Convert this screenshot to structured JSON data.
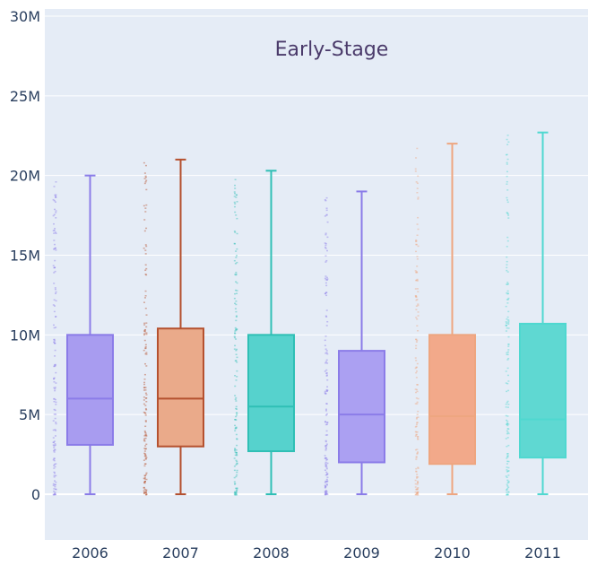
{
  "chart_data": {
    "type": "box",
    "title": "Early-Stage",
    "xlabel": "",
    "ylabel": "",
    "categories": [
      "2006",
      "2007",
      "2008",
      "2009",
      "2010",
      "2011"
    ],
    "y_ticks": [
      {
        "value": 0,
        "label": "0"
      },
      {
        "value": 5,
        "label": "5M"
      },
      {
        "value": 10,
        "label": "10M"
      },
      {
        "value": 15,
        "label": "15M"
      },
      {
        "value": 20,
        "label": "20M"
      },
      {
        "value": 25,
        "label": "25M"
      },
      {
        "value": 30,
        "label": "30M"
      }
    ],
    "ylim": [
      -3,
      30.5
    ],
    "grid": true,
    "legend": "none",
    "y_unit": "millions",
    "series": [
      {
        "category": "2006",
        "min": 0,
        "q1": 3.1,
        "median": 6.0,
        "q3": 10.0,
        "max": 20.0,
        "color": "#8b7ce8",
        "fill": "#a89cf0"
      },
      {
        "category": "2007",
        "min": 0,
        "q1": 3.0,
        "median": 6.0,
        "q3": 10.4,
        "max": 21.0,
        "color": "#b5512f",
        "fill": "#eaaa8a"
      },
      {
        "category": "2008",
        "min": 0,
        "q1": 2.7,
        "median": 5.5,
        "q3": 10.0,
        "max": 20.3,
        "color": "#2fbfb5",
        "fill": "#56d2cd"
      },
      {
        "category": "2009",
        "min": 0,
        "q1": 2.0,
        "median": 5.0,
        "q3": 9.0,
        "max": 19.0,
        "color": "#8b7ce8",
        "fill": "#aba0f2"
      },
      {
        "category": "2010",
        "min": 0,
        "q1": 1.9,
        "median": 4.9,
        "q3": 10.0,
        "max": 22.0,
        "color": "#eea680",
        "fill": "#f2a98a"
      },
      {
        "category": "2011",
        "min": 0,
        "q1": 2.3,
        "median": 4.7,
        "q3": 10.7,
        "max": 22.7,
        "color": "#4fd8d0",
        "fill": "#5fd8d2"
      }
    ]
  }
}
